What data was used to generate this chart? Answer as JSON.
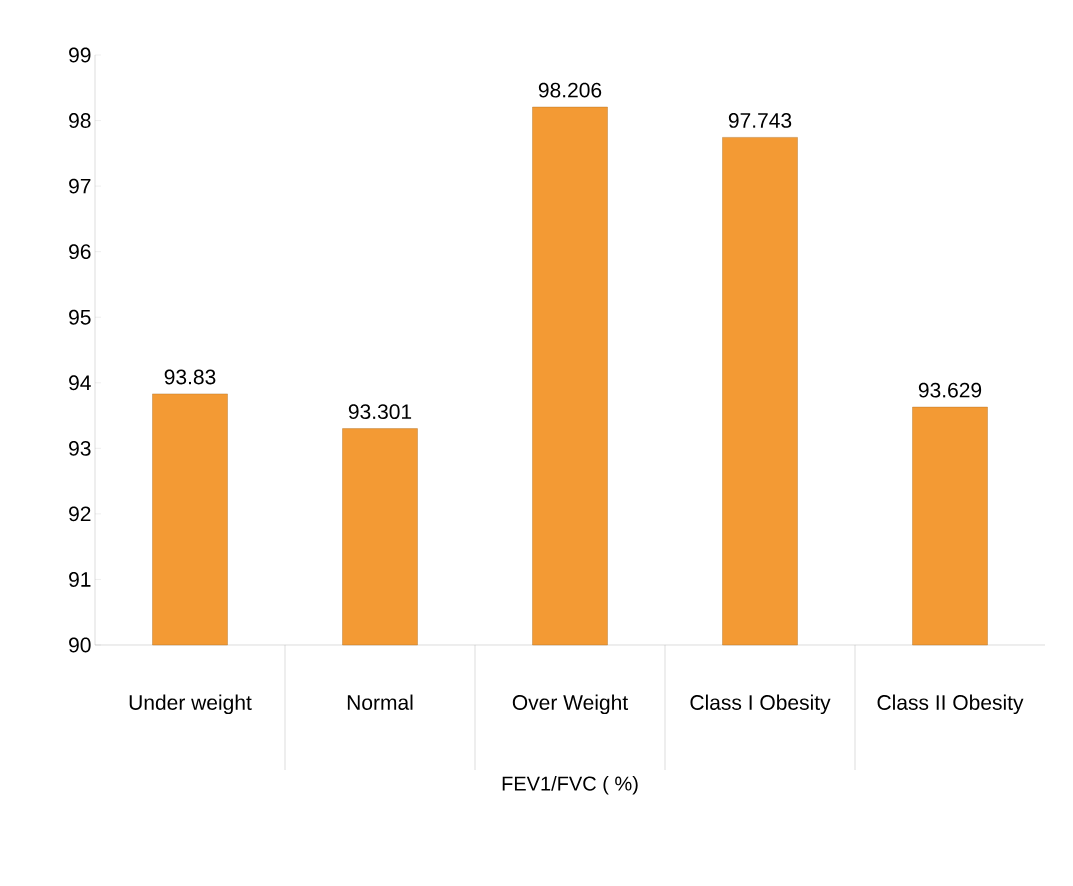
{
  "chart_data": {
    "type": "bar",
    "categories": [
      "Under weight",
      "Normal",
      "Over Weight",
      "Class I Obesity",
      "Class II Obesity"
    ],
    "values": [
      93.83,
      93.301,
      98.206,
      97.743,
      93.629
    ],
    "color": "#f39a34",
    "xlabel": "FEV1/FVC ( %)",
    "ylim": [
      90,
      99
    ],
    "yticks": [
      90,
      91,
      92,
      93,
      94,
      95,
      96,
      97,
      98,
      99
    ],
    "data_labels": true
  }
}
